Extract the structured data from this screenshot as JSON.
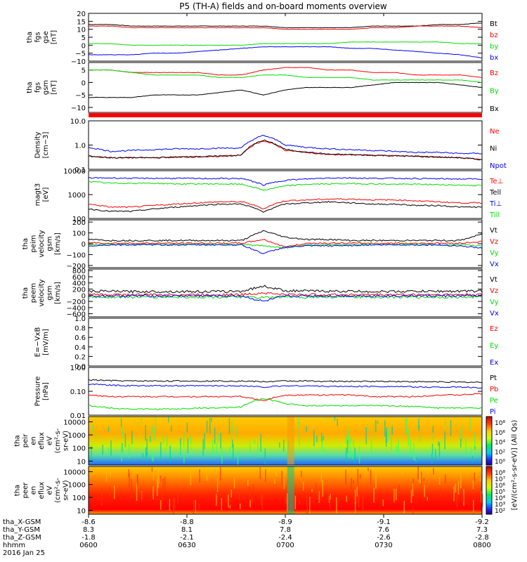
{
  "title": "P5 (TH-A) fields and on-board moments overview",
  "colors": {
    "black": "#000000",
    "red": "#ff0000",
    "green": "#00dd00",
    "blue": "#0000ff"
  },
  "chart_data": [
    {
      "type": "line",
      "id": "fgs-gse",
      "ylabel_lines": [
        "tha",
        "fgs",
        "gse",
        "[nT]"
      ],
      "yticks": [
        "20",
        "15",
        "10",
        "5",
        "0",
        "−5",
        "−10"
      ],
      "ylim": [
        -10,
        20
      ],
      "series": [
        {
          "name": "Bt",
          "color": "black",
          "values": [
            13,
            13,
            12,
            12,
            12,
            12,
            12,
            12,
            12,
            11,
            11,
            11,
            11,
            12,
            12,
            12,
            13,
            13,
            14
          ]
        },
        {
          "name": "bz",
          "color": "red",
          "values": [
            12,
            12,
            11,
            11,
            11,
            11,
            11,
            11,
            11,
            10,
            10,
            10,
            10,
            11,
            11,
            12,
            12,
            12,
            11
          ]
        },
        {
          "name": "by",
          "color": "green",
          "values": [
            1,
            1,
            0,
            0,
            0,
            0,
            0,
            0,
            1,
            1,
            1,
            1,
            2,
            2,
            2,
            2,
            2,
            1,
            1
          ]
        },
        {
          "name": "bx",
          "color": "blue",
          "values": [
            -6,
            -6,
            -6,
            -5,
            -5,
            -4,
            -3,
            -2,
            -1,
            -1,
            -1,
            -1,
            -2,
            -2,
            -3,
            -4,
            -5,
            -6,
            -8
          ]
        }
      ]
    },
    {
      "type": "line",
      "id": "fgs-gsm",
      "ylabel_lines": [
        "tha",
        "fgs",
        "gsm",
        "[nT]"
      ],
      "yticks": [
        "5",
        "0",
        "−5",
        "−10"
      ],
      "ylim": [
        -12,
        8
      ],
      "series": [
        {
          "name": "Bz",
          "color": "red",
          "values": [
            5,
            5,
            4,
            4,
            4,
            4,
            3,
            3,
            5,
            6,
            6,
            5,
            5,
            4,
            4,
            3,
            3,
            3,
            2
          ]
        },
        {
          "name": "By",
          "color": "green",
          "values": [
            5,
            5,
            4,
            3,
            3,
            3,
            2,
            2,
            3,
            3,
            2,
            2,
            2,
            1,
            1,
            1,
            1,
            1,
            0
          ]
        },
        {
          "name": "Bx",
          "color": "black",
          "values": [
            -6,
            -6,
            -6,
            -5,
            -5,
            -5,
            -4,
            -3,
            -5,
            -3,
            -2,
            -2,
            -2,
            -1,
            0,
            0,
            0,
            -1,
            -2
          ]
        }
      ]
    },
    {
      "type": "line",
      "id": "density",
      "log": true,
      "ylabel_lines": [
        "Density",
        "[cm−3]"
      ],
      "yticks": [
        "10.0",
        "1.0",
        "0.1"
      ],
      "ylim": [
        0.1,
        10
      ],
      "series": [
        {
          "name": "Ne",
          "color": "red",
          "values": [
            0.35,
            0.3,
            0.3,
            0.3,
            0.32,
            0.33,
            0.35,
            0.38,
            1.5,
            0.6,
            0.5,
            0.4,
            0.4,
            0.38,
            0.36,
            0.35,
            0.32,
            0.3,
            0.25
          ]
        },
        {
          "name": "Ni",
          "color": "black",
          "values": [
            0.35,
            0.3,
            0.3,
            0.3,
            0.32,
            0.33,
            0.35,
            0.38,
            1.6,
            0.65,
            0.5,
            0.42,
            0.4,
            0.38,
            0.36,
            0.34,
            0.32,
            0.3,
            0.25
          ]
        },
        {
          "name": "Npot",
          "color": "blue",
          "values": [
            0.8,
            0.55,
            0.6,
            0.65,
            0.7,
            0.7,
            0.75,
            0.75,
            2.5,
            1.0,
            0.8,
            0.7,
            0.65,
            0.6,
            0.55,
            0.5,
            0.5,
            0.45,
            0.45
          ]
        }
      ]
    },
    {
      "type": "line",
      "id": "temperature",
      "log": true,
      "ylabel_lines": [
        "magt3",
        "[eV]"
      ],
      "yticks": [
        "10000",
        "1000",
        "100"
      ],
      "ylim": [
        100,
        10000
      ],
      "series": [
        {
          "name": "Te⊥",
          "color": "red",
          "values": [
            400,
            300,
            300,
            350,
            400,
            450,
            500,
            500,
            250,
            550,
            600,
            650,
            650,
            600,
            600,
            550,
            500,
            450,
            450
          ]
        },
        {
          "name": "Tell",
          "color": "black",
          "values": [
            250,
            200,
            200,
            250,
            300,
            350,
            400,
            400,
            180,
            400,
            450,
            500,
            450,
            400,
            400,
            350,
            350,
            300,
            300
          ]
        },
        {
          "name": "Ti⊥",
          "color": "blue",
          "values": [
            5000,
            5000,
            4800,
            4800,
            4800,
            4700,
            4700,
            4700,
            2500,
            4000,
            4500,
            5000,
            5000,
            4800,
            4800,
            4700,
            4600,
            4500,
            4500
          ]
        },
        {
          "name": "Till",
          "color": "green",
          "values": [
            3500,
            3000,
            3000,
            3000,
            2800,
            2800,
            2800,
            2700,
            1500,
            2300,
            2700,
            2800,
            2900,
            2800,
            2700,
            2700,
            2600,
            2500,
            2400
          ]
        }
      ]
    },
    {
      "type": "line",
      "id": "ion-velocity",
      "ylabel_lines": [
        "tha",
        "peim",
        "velocity",
        "gsm",
        "[km/s]"
      ],
      "yticks": [
        "200",
        "100",
        "0",
        "−100",
        "−200"
      ],
      "ylim": [
        -220,
        220
      ],
      "series": [
        {
          "name": "Vt",
          "color": "black",
          "values": [
            40,
            30,
            30,
            30,
            30,
            30,
            30,
            30,
            120,
            60,
            40,
            40,
            30,
            30,
            30,
            30,
            30,
            30,
            90
          ]
        },
        {
          "name": "Vz",
          "color": "red",
          "values": [
            10,
            5,
            5,
            5,
            5,
            5,
            5,
            5,
            40,
            -30,
            5,
            5,
            5,
            5,
            5,
            5,
            5,
            5,
            20
          ]
        },
        {
          "name": "Vy",
          "color": "green",
          "values": [
            -10,
            -5,
            -5,
            -5,
            -5,
            -5,
            -5,
            -5,
            -20,
            -40,
            -10,
            -10,
            -5,
            -5,
            -5,
            -5,
            -10,
            -10,
            -20
          ]
        },
        {
          "name": "Vx",
          "color": "blue",
          "values": [
            -20,
            -10,
            -10,
            -10,
            -10,
            -10,
            -10,
            -10,
            -90,
            -30,
            -20,
            -20,
            -15,
            -10,
            -10,
            -10,
            -10,
            -20,
            -40
          ]
        }
      ]
    },
    {
      "type": "line",
      "id": "electron-velocity",
      "ylabel_lines": [
        "tha",
        "peem",
        "velocity",
        "gsm",
        "[km/s]"
      ],
      "yticks": [
        "800",
        "600",
        "400",
        "200",
        "0",
        "−200",
        "−400",
        "−600"
      ],
      "ylim": [
        -700,
        850
      ],
      "series": [
        {
          "name": "Vt",
          "color": "black",
          "values": [
            130,
            130,
            120,
            120,
            120,
            120,
            120,
            130,
            300,
            150,
            140,
            130,
            130,
            120,
            120,
            130,
            130,
            130,
            140
          ]
        },
        {
          "name": "Vz",
          "color": "red",
          "values": [
            20,
            20,
            20,
            20,
            20,
            20,
            20,
            20,
            80,
            20,
            20,
            20,
            20,
            20,
            20,
            20,
            20,
            20,
            20
          ]
        },
        {
          "name": "Vy",
          "color": "green",
          "values": [
            -60,
            -60,
            -60,
            -60,
            -60,
            -60,
            -60,
            -60,
            -80,
            -60,
            -60,
            -60,
            -60,
            -60,
            -60,
            -60,
            -60,
            -60,
            -60
          ]
        },
        {
          "name": "Vx",
          "color": "blue",
          "values": [
            -20,
            -20,
            -20,
            -20,
            -20,
            -20,
            -20,
            -20,
            -200,
            -30,
            -20,
            -20,
            -20,
            -20,
            -20,
            -20,
            -20,
            -20,
            -20
          ]
        }
      ]
    },
    {
      "type": "line",
      "id": "efield",
      "ylabel_lines": [
        "E=−VxB",
        "[mV/m]"
      ],
      "yticks": [
        "1.0",
        "0.8",
        "0.6",
        "0.4",
        "0.2",
        "0.0"
      ],
      "ylim": [
        0,
        1
      ],
      "series": [
        {
          "name": "Ez",
          "color": "red",
          "values": []
        },
        {
          "name": "Ey",
          "color": "green",
          "values": []
        },
        {
          "name": "Ex",
          "color": "blue",
          "values": []
        }
      ]
    },
    {
      "type": "line",
      "id": "pressure",
      "log": true,
      "ylabel_lines": [
        "Pressure",
        "[nPa]"
      ],
      "yticks": [
        "1.00",
        "0.10",
        "0.01"
      ],
      "ylim": [
        0.01,
        1
      ],
      "series": [
        {
          "name": "Pt",
          "color": "black",
          "values": [
            0.3,
            0.28,
            0.27,
            0.27,
            0.27,
            0.27,
            0.27,
            0.27,
            0.25,
            0.27,
            0.27,
            0.26,
            0.26,
            0.26,
            0.26,
            0.25,
            0.25,
            0.24,
            0.24
          ]
        },
        {
          "name": "Pb",
          "color": "red",
          "values": [
            0.07,
            0.06,
            0.06,
            0.06,
            0.06,
            0.06,
            0.06,
            0.06,
            0.04,
            0.07,
            0.07,
            0.07,
            0.07,
            0.06,
            0.06,
            0.06,
            0.07,
            0.07,
            0.08
          ]
        },
        {
          "name": "Pe",
          "color": "green",
          "values": [
            0.025,
            0.02,
            0.018,
            0.018,
            0.018,
            0.02,
            0.02,
            0.022,
            0.05,
            0.03,
            0.025,
            0.025,
            0.025,
            0.025,
            0.024,
            0.023,
            0.02,
            0.02,
            0.02
          ]
        },
        {
          "name": "Pi",
          "color": "blue",
          "values": [
            0.2,
            0.18,
            0.17,
            0.17,
            0.17,
            0.17,
            0.17,
            0.17,
            0.15,
            0.17,
            0.17,
            0.16,
            0.16,
            0.16,
            0.16,
            0.15,
            0.15,
            0.15,
            0.14
          ]
        }
      ]
    },
    {
      "type": "heatmap",
      "id": "ion-spectrogram",
      "ylabel_lines": [
        "tha",
        "peir",
        "en",
        "eflux",
        "eV",
        "(cm²-s-",
        "sr-eV)"
      ],
      "yticks": [
        "10000",
        "1000",
        "100",
        "10"
      ],
      "ylim": [
        5,
        25000
      ]
    },
    {
      "type": "heatmap",
      "id": "electron-spectrogram",
      "ylabel_lines": [
        "tha",
        "peer",
        "en",
        "eflux",
        "eV",
        "(cm²-s-",
        "sr-eV)"
      ],
      "yticks": [
        "10000",
        "1000",
        "100",
        "10"
      ],
      "ylim": [
        5,
        25000
      ]
    }
  ],
  "colorbar": {
    "label": "[eV/(cm²-s-sr-eV)] (All Qs)",
    "ion_ticks": [
      "10⁸",
      "10⁶",
      "10⁴",
      "10²",
      "10⁰"
    ],
    "electron_ticks": [
      "10⁸",
      "10⁷",
      "10⁶",
      "10⁵",
      "10⁴",
      "10³",
      "10²"
    ]
  },
  "x_axis": {
    "row_labels": [
      "tha_X-GSM",
      "tha_Y-GSM",
      "tha_Z-GSM",
      "hhmm",
      "2016 Jan 25"
    ],
    "ticks": [
      {
        "x": "-8.6",
        "y": "8.3",
        "z": "-1.8",
        "hhmm": "0600"
      },
      {
        "x": "-8.8",
        "y": "8.1",
        "z": "-2.1",
        "hhmm": "0630"
      },
      {
        "x": "-8.9",
        "y": "7.8",
        "z": "-2.4",
        "hhmm": "0700"
      },
      {
        "x": "-9.1",
        "y": "7.6",
        "z": "-2.6",
        "hhmm": "0730"
      },
      {
        "x": "-9.2",
        "y": "7.3",
        "z": "-2.8",
        "hhmm": "0800"
      }
    ]
  }
}
